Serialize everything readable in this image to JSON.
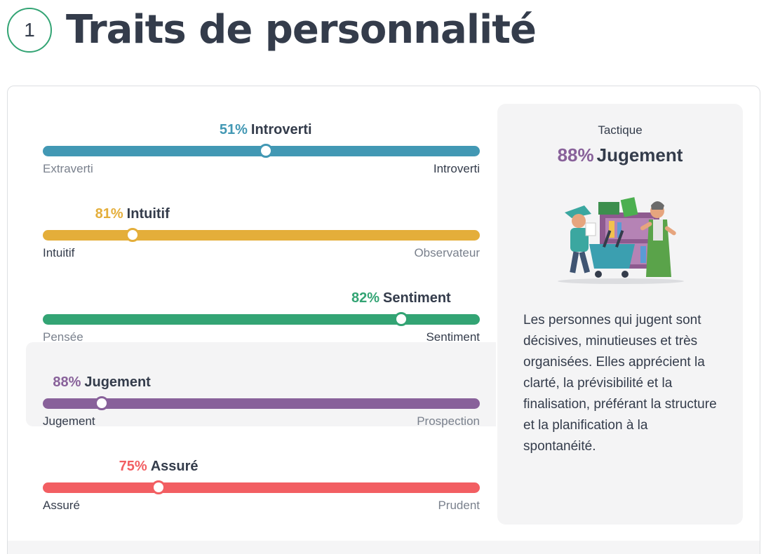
{
  "section": {
    "number": "1",
    "title": "Traits de personnalité"
  },
  "traits": [
    {
      "pct": "51%",
      "name": "Introverti",
      "value": 51,
      "position": 0.51,
      "left_label": "Extraverti",
      "right_label": "Introverti",
      "dominant": "right",
      "color": "#4298b4"
    },
    {
      "pct": "81%",
      "name": "Intuitif",
      "value": 81,
      "position": 0.205,
      "left_label": "Intuitif",
      "right_label": "Observateur",
      "dominant": "left",
      "color": "#e4ae3a"
    },
    {
      "pct": "82%",
      "name": "Sentiment",
      "value": 82,
      "position": 0.82,
      "left_label": "Pensée",
      "right_label": "Sentiment",
      "dominant": "right",
      "color": "#33a474"
    },
    {
      "pct": "88%",
      "name": "Jugement",
      "value": 88,
      "position": 0.135,
      "left_label": "Jugement",
      "right_label": "Prospection",
      "dominant": "left",
      "color": "#88619a",
      "active": true
    },
    {
      "pct": "75%",
      "name": "Assuré",
      "value": 75,
      "position": 0.265,
      "left_label": "Assuré",
      "right_label": "Prudent",
      "dominant": "left",
      "color": "#f25e62"
    }
  ],
  "panel": {
    "label": "Tactique",
    "pct": "88%",
    "name": "Jugement",
    "description": "Les personnes qui jugent sont décisives, minutieuses et très organisées. Elles apprécient la clarté, la prévisibilité et la finalisation, préférant la structure et la planification à la spontanéité.",
    "illustration_icon": "shopping-people-illustration"
  }
}
